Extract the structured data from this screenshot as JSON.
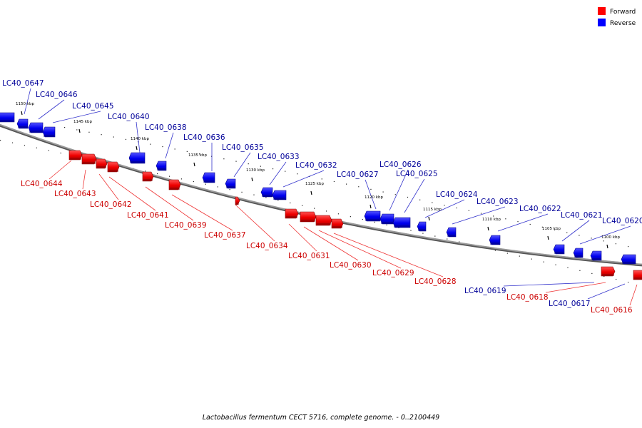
{
  "legend": {
    "forward": {
      "label": "Forward",
      "color": "#ff0000"
    },
    "reverse": {
      "label": "Reverse",
      "color": "#0000ff"
    }
  },
  "caption": "Lactobacillus fermentum CECT 5716, complete genome. - 0..2100449",
  "colors": {
    "forward_label": "#cc0000",
    "reverse_label": "#000099",
    "backbone": "#888888",
    "forward_gene": "#ff0000",
    "reverse_gene": "#0000ff"
  },
  "ticks": [
    {
      "label": "1150 kbp"
    },
    {
      "label": "1145 kbp"
    },
    {
      "label": "1140 kbp"
    },
    {
      "label": "1135 kbp"
    },
    {
      "label": "1130 kbp"
    },
    {
      "label": "1125 kbp"
    },
    {
      "label": "1120 kbp"
    },
    {
      "label": "1115 kbp"
    },
    {
      "label": "1110 kbp"
    },
    {
      "label": "1105 kbp"
    },
    {
      "label": "1100 kbp"
    }
  ],
  "genes": [
    {
      "name": "LC40_0647",
      "strand": "reverse"
    },
    {
      "name": "LC40_0646",
      "strand": "reverse"
    },
    {
      "name": "LC40_0645",
      "strand": "reverse"
    },
    {
      "name": "LC40_0640",
      "strand": "reverse"
    },
    {
      "name": "LC40_0638",
      "strand": "reverse"
    },
    {
      "name": "LC40_0636",
      "strand": "reverse"
    },
    {
      "name": "LC40_0635",
      "strand": "reverse"
    },
    {
      "name": "LC40_0633",
      "strand": "reverse"
    },
    {
      "name": "LC40_0632",
      "strand": "reverse"
    },
    {
      "name": "LC40_0627",
      "strand": "reverse"
    },
    {
      "name": "LC40_0626",
      "strand": "reverse"
    },
    {
      "name": "LC40_0625",
      "strand": "reverse"
    },
    {
      "name": "LC40_0624",
      "strand": "reverse"
    },
    {
      "name": "LC40_0623",
      "strand": "reverse"
    },
    {
      "name": "LC40_0622",
      "strand": "reverse"
    },
    {
      "name": "LC40_0621",
      "strand": "reverse"
    },
    {
      "name": "LC40_0620",
      "strand": "reverse"
    },
    {
      "name": "LC40_0644",
      "strand": "forward"
    },
    {
      "name": "LC40_0643",
      "strand": "forward"
    },
    {
      "name": "LC40_0642",
      "strand": "forward"
    },
    {
      "name": "LC40_0641",
      "strand": "forward"
    },
    {
      "name": "LC40_0639",
      "strand": "forward"
    },
    {
      "name": "LC40_0637",
      "strand": "forward"
    },
    {
      "name": "LC40_0634",
      "strand": "forward"
    },
    {
      "name": "LC40_0631",
      "strand": "forward"
    },
    {
      "name": "LC40_0630",
      "strand": "forward"
    },
    {
      "name": "LC40_0629",
      "strand": "forward"
    },
    {
      "name": "LC40_0628",
      "strand": "forward"
    },
    {
      "name": "LC40_0619",
      "strand": "reverse"
    },
    {
      "name": "LC40_0618",
      "strand": "forward"
    },
    {
      "name": "LC40_0617",
      "strand": "reverse"
    },
    {
      "name": "LC40_0616",
      "strand": "forward"
    }
  ]
}
